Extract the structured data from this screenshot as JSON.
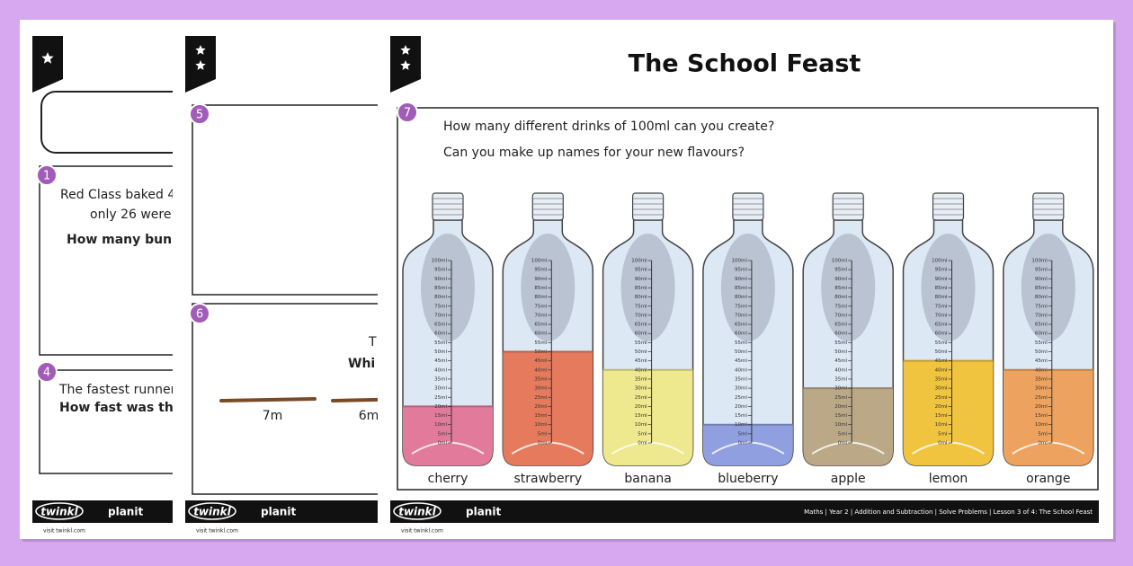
{
  "pages": [
    {
      "questions": [
        {
          "number": "1",
          "lines": [
            "Red Class baked 4",
            "only 26 were"
          ],
          "bold": "How many buns"
        },
        {
          "number": "4",
          "lines": [
            "The fastest runner"
          ],
          "bold": "How fast was the"
        }
      ],
      "footer": {
        "brand": "twinkl",
        "product": "planit",
        "url": "visit twinkl.com"
      }
    },
    {
      "questions": [
        {
          "number": "5"
        },
        {
          "number": "6",
          "lines": [
            "T"
          ],
          "bold": "Whi",
          "sticks": [
            "7m",
            "6m"
          ]
        }
      ],
      "footer": {
        "brand": "twinkl",
        "product": "planit",
        "url": "visit twinkl.com"
      }
    },
    {
      "title": "The School Feast",
      "questions": [
        {
          "number": "7",
          "lines": [
            "How many different drinks of 100ml can you create?",
            "Can you make up names for your new flavours?"
          ]
        }
      ],
      "scale_labels": [
        "0ml",
        "5ml",
        "10ml",
        "15ml",
        "20ml",
        "25ml",
        "30ml",
        "35ml",
        "40ml",
        "45ml",
        "50ml",
        "55ml",
        "60ml",
        "65ml",
        "70ml",
        "75ml",
        "80ml",
        "85ml",
        "90ml",
        "95ml",
        "100ml"
      ],
      "bottles": [
        {
          "label": "cherry",
          "fill_ml": 20,
          "color": "#e27a9b"
        },
        {
          "label": "strawberry",
          "fill_ml": 50,
          "color": "#e67a5c"
        },
        {
          "label": "banana",
          "fill_ml": 40,
          "color": "#eee88e"
        },
        {
          "label": "blueberry",
          "fill_ml": 10,
          "color": "#909fe0"
        },
        {
          "label": "apple",
          "fill_ml": 30,
          "color": "#bba887"
        },
        {
          "label": "lemon",
          "fill_ml": 45,
          "color": "#f1c43f"
        },
        {
          "label": "orange",
          "fill_ml": 40,
          "color": "#eda35f"
        }
      ],
      "footer": {
        "brand": "twinkl",
        "product": "planit",
        "url": "visit twinkl.com",
        "info": "Maths | Year 2 | Addition and Subtraction | Solve Problems | Lesson 3 of 4: The School Feast"
      }
    }
  ]
}
